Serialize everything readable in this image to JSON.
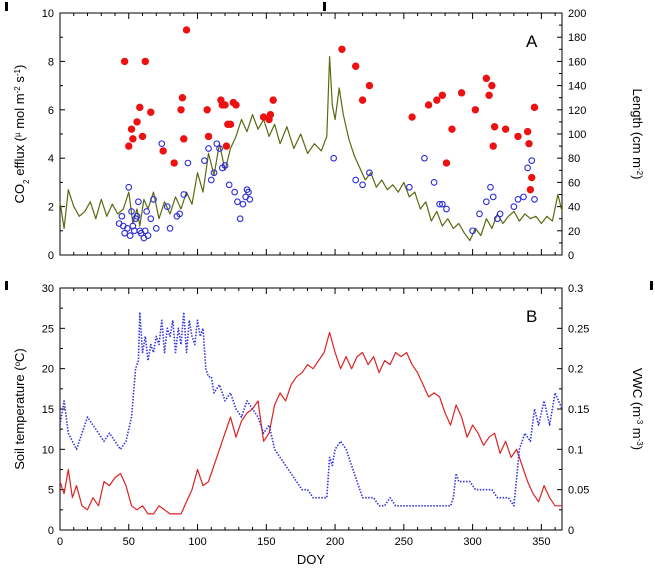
{
  "chart_data": [
    {
      "panel": "A",
      "type": "line",
      "panel_label": "A",
      "xlim": [
        0,
        365
      ],
      "y_left": {
        "label_parts": [
          "CO",
          "2",
          " efflux (",
          "µ",
          " mol m",
          "-2",
          " s",
          "-1",
          ")"
        ],
        "range": [
          0,
          10
        ],
        "ticks": [
          "0",
          "2",
          "4",
          "6",
          "8",
          "10"
        ]
      },
      "y_right": {
        "label_parts": [
          "Length (cm m",
          "-2",
          ")"
        ],
        "range": [
          0,
          200
        ],
        "ticks": [
          "0",
          "20",
          "40",
          "60",
          "80",
          "100",
          "120",
          "140",
          "160",
          "180",
          "200"
        ]
      },
      "colors": {
        "line": "#5a6a10",
        "filled": "#ee1111",
        "open": "#2b2bdd"
      },
      "series": [
        {
          "style": "line",
          "axis": "left",
          "x": [
            0,
            3,
            6,
            10,
            14,
            18,
            22,
            26,
            30,
            34,
            38,
            42,
            46,
            50,
            53,
            56,
            58,
            61,
            64,
            68,
            72,
            76,
            80,
            84,
            88,
            92,
            96,
            100,
            104,
            108,
            112,
            116,
            120,
            124,
            128,
            132,
            136,
            140,
            144,
            148,
            152,
            156,
            160,
            165,
            170,
            175,
            180,
            185,
            190,
            194,
            196,
            198,
            200,
            203,
            206,
            210,
            214,
            218,
            222,
            226,
            230,
            234,
            238,
            242,
            246,
            250,
            254,
            258,
            262,
            266,
            270,
            274,
            278,
            282,
            286,
            290,
            294,
            298,
            302,
            306,
            310,
            314,
            318,
            322,
            326,
            330,
            334,
            338,
            342,
            346,
            350,
            354,
            358,
            362,
            365
          ],
          "y": [
            2.2,
            1.1,
            2.7,
            2.0,
            1.6,
            1.8,
            2.2,
            1.5,
            2.3,
            1.6,
            2.1,
            1.7,
            1.9,
            2.6,
            1.3,
            1.9,
            1.2,
            2.3,
            1.9,
            2.6,
            1.5,
            2.2,
            1.7,
            2.4,
            1.9,
            2.6,
            2.1,
            3.4,
            2.6,
            4.2,
            3.3,
            4.6,
            3.5,
            4.4,
            4.9,
            5.6,
            5.1,
            5.8,
            5.2,
            5.6,
            4.9,
            5.4,
            4.6,
            5.3,
            4.4,
            5.0,
            4.2,
            4.6,
            4.3,
            4.9,
            8.2,
            6.2,
            5.6,
            6.9,
            5.8,
            4.8,
            4.1,
            3.6,
            3.1,
            3.4,
            2.8,
            3.1,
            2.7,
            2.9,
            2.6,
            3.0,
            2.4,
            2.6,
            1.9,
            2.2,
            1.4,
            1.8,
            1.2,
            1.5,
            1.1,
            1.3,
            0.9,
            0.6,
            1.1,
            0.8,
            1.5,
            1.1,
            1.7,
            1.3,
            1.6,
            1.8,
            1.4,
            1.7,
            1.5,
            1.6,
            1.3,
            1.6,
            1.4,
            2.5,
            1.8
          ]
        },
        {
          "style": "filled_points",
          "axis": "left",
          "x": [
            47,
            50,
            52,
            53,
            56,
            58,
            60,
            62,
            66,
            75,
            83,
            88,
            89,
            90,
            92,
            107,
            108,
            117,
            118,
            120,
            121,
            122,
            124,
            126,
            128,
            148,
            152,
            153,
            155,
            205,
            215,
            220,
            225,
            256,
            268,
            274,
            278,
            281,
            285,
            292,
            302,
            310,
            312,
            314,
            315,
            316,
            324,
            333,
            340,
            341,
            342,
            343,
            345
          ],
          "y": [
            8.0,
            4.5,
            5.2,
            4.8,
            5.5,
            6.1,
            4.9,
            8.0,
            5.9,
            4.3,
            3.8,
            6.0,
            6.5,
            4.8,
            9.3,
            6.0,
            4.9,
            6.4,
            6.2,
            6.2,
            4.5,
            5.4,
            5.4,
            6.3,
            6.2,
            5.7,
            5.6,
            5.8,
            6.4,
            8.5,
            7.8,
            6.4,
            7.0,
            5.7,
            6.2,
            6.4,
            6.6,
            3.8,
            5.2,
            6.7,
            6.0,
            7.3,
            6.6,
            7.0,
            4.5,
            5.3,
            5.2,
            4.9,
            5.1,
            4.6,
            2.7,
            3.2,
            6.1
          ]
        },
        {
          "style": "open_points",
          "axis": "left",
          "x": [
            43,
            45,
            46,
            47,
            49,
            50,
            51,
            52,
            53,
            54,
            55,
            56,
            57,
            58,
            59,
            61,
            62,
            63,
            64,
            66,
            68,
            70,
            74,
            78,
            80,
            85,
            87,
            90,
            93,
            105,
            108,
            110,
            112,
            114,
            116,
            118,
            120,
            123,
            127,
            129,
            131,
            133,
            135,
            136,
            137,
            138,
            199,
            215,
            220,
            225,
            254,
            265,
            272,
            276,
            278,
            281,
            300,
            305,
            310,
            313,
            315,
            318,
            320,
            330,
            333,
            337,
            340,
            343,
            345
          ],
          "y": [
            1.3,
            1.6,
            1.2,
            0.9,
            1.1,
            2.8,
            0.8,
            1.8,
            1.2,
            1.0,
            1.5,
            1.6,
            2.2,
            1.0,
            0.9,
            0.7,
            1.0,
            1.8,
            0.8,
            1.5,
            2.3,
            1.1,
            4.6,
            2.0,
            1.1,
            1.6,
            1.7,
            2.5,
            3.8,
            3.9,
            4.4,
            3.1,
            3.4,
            4.6,
            4.4,
            3.6,
            3.7,
            2.9,
            2.6,
            2.2,
            1.5,
            2.1,
            2.4,
            2.7,
            2.6,
            2.3,
            4.0,
            3.1,
            2.9,
            3.4,
            2.8,
            4.0,
            3.0,
            2.1,
            2.1,
            1.9,
            1.0,
            1.7,
            2.2,
            2.8,
            2.4,
            1.5,
            1.7,
            2.0,
            2.3,
            2.4,
            3.6,
            3.9,
            2.3
          ]
        }
      ]
    },
    {
      "panel": "B",
      "type": "line",
      "panel_label": "B",
      "xlabel": "DOY",
      "xlim": [
        0,
        365
      ],
      "xticks": [
        "0",
        "50",
        "100",
        "150",
        "200",
        "250",
        "300",
        "350"
      ],
      "y_left": {
        "label_parts": [
          "Soil temperature (",
          "o",
          "C)"
        ],
        "range": [
          0,
          30
        ],
        "ticks": [
          "0",
          "5",
          "10",
          "15",
          "20",
          "25",
          "30"
        ]
      },
      "y_right": {
        "label_parts": [
          "VWC (m",
          "-3",
          " m",
          "-3",
          ")"
        ],
        "range": [
          0,
          0.3
        ],
        "ticks": [
          "0",
          "0.05",
          "0.1",
          "0.15",
          "0.2",
          "0.25",
          "0.3"
        ]
      },
      "colors": {
        "temperature": "#dd2222",
        "vwc": "#3333dd"
      },
      "series": [
        {
          "style": "solid",
          "axis": "left",
          "x": [
            0,
            3,
            6,
            9,
            12,
            16,
            20,
            24,
            28,
            32,
            36,
            40,
            44,
            48,
            52,
            56,
            60,
            64,
            68,
            72,
            76,
            80,
            84,
            88,
            92,
            96,
            100,
            104,
            108,
            112,
            116,
            120,
            124,
            128,
            132,
            136,
            140,
            144,
            148,
            152,
            156,
            160,
            164,
            168,
            172,
            176,
            180,
            184,
            188,
            192,
            196,
            200,
            204,
            208,
            212,
            216,
            220,
            224,
            228,
            232,
            236,
            240,
            244,
            248,
            252,
            256,
            260,
            264,
            268,
            272,
            276,
            280,
            284,
            288,
            292,
            296,
            300,
            304,
            308,
            312,
            316,
            320,
            324,
            328,
            332,
            336,
            340,
            344,
            348,
            352,
            356,
            360,
            365
          ],
          "y": [
            6,
            4.5,
            7.5,
            4,
            5.5,
            3,
            2.5,
            4,
            3,
            6,
            5.5,
            6.5,
            7,
            5.5,
            3,
            2.5,
            3,
            2,
            2,
            3,
            2.5,
            2,
            2,
            2,
            3.5,
            5,
            7.5,
            5.5,
            6,
            8,
            10,
            12,
            14,
            11.5,
            13.5,
            14.5,
            15,
            16,
            11,
            12,
            15.5,
            17,
            16,
            18,
            19,
            19.5,
            20.5,
            20,
            21,
            22,
            24.5,
            22,
            20,
            21.5,
            20,
            21.5,
            22,
            20.5,
            21.5,
            19.5,
            21,
            20.5,
            22,
            21.5,
            22,
            20.5,
            19.5,
            18,
            16.5,
            17,
            16.5,
            14.5,
            13,
            15.5,
            14,
            11.5,
            13,
            12,
            10.5,
            11.5,
            12,
            9.5,
            11,
            9,
            10,
            8,
            6,
            4.5,
            3.5,
            5.5,
            4,
            3,
            3
          ]
        },
        {
          "style": "dotted",
          "axis": "right",
          "x": [
            0,
            3,
            6,
            9,
            12,
            16,
            20,
            24,
            28,
            32,
            36,
            40,
            44,
            48,
            52,
            55,
            57,
            58,
            60,
            62,
            64,
            66,
            68,
            70,
            72,
            74,
            76,
            78,
            80,
            82,
            84,
            86,
            88,
            90,
            92,
            94,
            96,
            98,
            100,
            102,
            104,
            106,
            108,
            110,
            112,
            116,
            120,
            124,
            128,
            132,
            136,
            140,
            144,
            148,
            152,
            156,
            160,
            164,
            168,
            172,
            176,
            180,
            184,
            188,
            192,
            194,
            196,
            198,
            200,
            204,
            208,
            212,
            216,
            220,
            224,
            228,
            232,
            236,
            240,
            244,
            248,
            252,
            256,
            260,
            264,
            268,
            272,
            276,
            280,
            284,
            286,
            288,
            290,
            294,
            298,
            302,
            306,
            310,
            314,
            318,
            322,
            326,
            330,
            334,
            338,
            342,
            345,
            348,
            352,
            356,
            360,
            365
          ],
          "y": [
            0.13,
            0.16,
            0.12,
            0.11,
            0.1,
            0.12,
            0.14,
            0.13,
            0.12,
            0.11,
            0.12,
            0.11,
            0.1,
            0.11,
            0.14,
            0.2,
            0.21,
            0.27,
            0.22,
            0.24,
            0.21,
            0.23,
            0.22,
            0.24,
            0.23,
            0.26,
            0.22,
            0.25,
            0.24,
            0.26,
            0.22,
            0.25,
            0.23,
            0.27,
            0.22,
            0.26,
            0.24,
            0.23,
            0.26,
            0.24,
            0.25,
            0.2,
            0.19,
            0.19,
            0.17,
            0.18,
            0.16,
            0.17,
            0.15,
            0.14,
            0.16,
            0.15,
            0.14,
            0.12,
            0.13,
            0.1,
            0.09,
            0.08,
            0.07,
            0.06,
            0.05,
            0.05,
            0.04,
            0.04,
            0.04,
            0.04,
            0.09,
            0.08,
            0.1,
            0.11,
            0.1,
            0.08,
            0.06,
            0.04,
            0.04,
            0.04,
            0.03,
            0.03,
            0.04,
            0.03,
            0.03,
            0.03,
            0.03,
            0.03,
            0.03,
            0.03,
            0.03,
            0.03,
            0.03,
            0.03,
            0.04,
            0.07,
            0.06,
            0.06,
            0.06,
            0.05,
            0.05,
            0.05,
            0.05,
            0.04,
            0.04,
            0.04,
            0.03,
            0.1,
            0.12,
            0.11,
            0.15,
            0.13,
            0.16,
            0.13,
            0.17,
            0.15
          ]
        }
      ]
    }
  ]
}
